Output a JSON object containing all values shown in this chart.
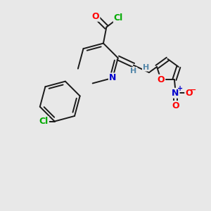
{
  "bg_color": "#e8e8e8",
  "bond_color": "#1a1a1a",
  "atom_colors": {
    "O": "#ff0000",
    "N": "#0000cc",
    "Cl": "#00aa00",
    "H": "#5588aa",
    "C": "#1a1a1a"
  },
  "figsize": [
    3.0,
    3.0
  ],
  "dpi": 100
}
